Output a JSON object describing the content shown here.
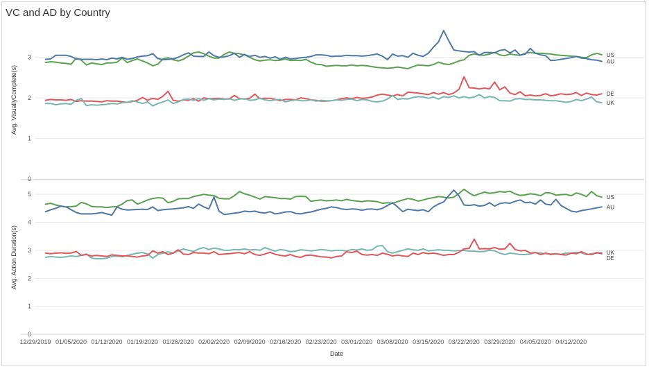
{
  "title": "VC and AD by Country",
  "colors": {
    "US": "#59a14f",
    "AU": "#4e79a7",
    "DE": "#e15759",
    "UK": "#76b7b2",
    "grid": "#e9e9e9",
    "divider": "#cfcfcf"
  },
  "chart_data": [
    {
      "type": "line",
      "ylabel": "Avg. VisuallyComplete(s)",
      "xlabel": "Date",
      "ylim": [
        0,
        3.9
      ],
      "yticks": [
        0,
        1,
        2,
        3
      ],
      "grid": true,
      "x_start": "2019-12-31",
      "x_step_days": 1,
      "xticks": [
        "12/29/2019",
        "01/05/2020",
        "01/12/2020",
        "01/19/2020",
        "01/26/2020",
        "02/02/2020",
        "02/09/2020",
        "02/16/2020",
        "02/23/2020",
        "03/01/2020",
        "03/08/2020",
        "03/15/2020",
        "03/22/2020",
        "03/29/2020",
        "04/05/2020",
        "04/12/2020"
      ],
      "series": [
        {
          "name": "US",
          "label_order": 0,
          "values": [
            2.87,
            2.89,
            2.88,
            2.86,
            2.85,
            2.83,
            2.98,
            2.93,
            2.81,
            2.86,
            2.84,
            2.82,
            2.86,
            2.86,
            2.88,
            2.98,
            2.87,
            2.92,
            2.96,
            2.91,
            2.86,
            2.79,
            2.83,
            2.96,
            2.99,
            2.94,
            2.91,
            2.95,
            3.03,
            3.11,
            3.13,
            3.09,
            3.03,
            2.98,
            2.98,
            3.07,
            3.13,
            3.1,
            3.09,
            3.06,
            3.0,
            2.94,
            2.91,
            2.93,
            2.94,
            2.92,
            2.93,
            2.96,
            2.92,
            2.93,
            2.92,
            2.95,
            2.88,
            2.83,
            2.82,
            2.78,
            2.79,
            2.8,
            2.79,
            2.79,
            2.81,
            2.79,
            2.8,
            2.79,
            2.77,
            2.75,
            2.74,
            2.73,
            2.74,
            2.76,
            2.74,
            2.72,
            2.77,
            2.81,
            2.8,
            2.79,
            2.82,
            2.88,
            2.84,
            2.82,
            2.86,
            2.91,
            2.94,
            3.05,
            3.08,
            3.06,
            3.05,
            3.08,
            3.12,
            3.06,
            3.04,
            3.08,
            3.06,
            3.05,
            3.1,
            3.12,
            3.1,
            3.1,
            3.09,
            3.08,
            3.06,
            3.05,
            3.04,
            3.03,
            3.02,
            3.0,
            2.99,
            3.06,
            3.1,
            3.06
          ]
        },
        {
          "name": "AU",
          "label_order": 1,
          "values": [
            2.95,
            2.96,
            3.05,
            3.05,
            3.05,
            3.02,
            2.96,
            2.95,
            2.95,
            2.95,
            2.94,
            2.96,
            2.94,
            2.98,
            2.96,
            3.0,
            2.95,
            2.97,
            3.01,
            3.03,
            3.04,
            3.09,
            2.97,
            2.94,
            2.95,
            2.96,
            3.0,
            3.06,
            3.11,
            3.03,
            3.02,
            3.02,
            3.13,
            3.04,
            3.0,
            3.01,
            3.04,
            3.1,
            3.0,
            3.07,
            3.02,
            3.05,
            3.0,
            3.02,
            2.98,
            3.01,
            2.95,
            3.0,
            2.96,
            2.97,
            2.99,
            3.0,
            3.02,
            3.06,
            3.06,
            3.05,
            3.02,
            3.03,
            3.03,
            3.05,
            3.04,
            3.04,
            3.03,
            3.04,
            3.06,
            3.08,
            3.03,
            2.94,
            3.08,
            3.03,
            3.04,
            3.0,
            3.1,
            3.05,
            3.02,
            3.1,
            3.25,
            3.38,
            3.66,
            3.41,
            3.18,
            3.16,
            3.14,
            3.13,
            3.14,
            3.05,
            3.12,
            3.12,
            3.11,
            3.17,
            3.19,
            3.11,
            3.18,
            3.05,
            3.08,
            3.22,
            3.1,
            3.06,
            3.04,
            2.92,
            2.93,
            2.95,
            2.97,
            2.99,
            3.02,
            2.98,
            2.97,
            2.94,
            2.93,
            2.9
          ]
        },
        {
          "name": "DE",
          "label_order": 2,
          "values": [
            1.94,
            1.96,
            1.95,
            1.95,
            1.94,
            1.96,
            1.91,
            1.93,
            1.92,
            1.92,
            1.91,
            1.9,
            1.93,
            1.92,
            1.92,
            1.9,
            1.89,
            1.91,
            1.94,
            2.01,
            1.94,
            1.99,
            1.96,
            2.04,
            2.16,
            1.94,
            1.92,
            1.95,
            1.94,
            1.98,
            1.92,
            2.0,
            1.98,
            1.98,
            1.99,
            1.97,
            1.97,
            2.06,
            1.98,
            1.97,
            1.99,
            2.09,
            1.98,
            1.99,
            1.99,
            1.96,
            1.93,
            1.96,
            1.96,
            1.95,
            2.0,
            1.98,
            1.95,
            1.94,
            1.92,
            1.92,
            1.93,
            1.95,
            1.98,
            2.0,
            1.98,
            2.01,
            1.99,
            2.0,
            2.02,
            2.07,
            2.09,
            2.07,
            2.05,
            2.08,
            2.05,
            2.14,
            2.13,
            2.12,
            2.1,
            2.08,
            2.13,
            2.09,
            2.13,
            2.08,
            2.12,
            2.21,
            2.52,
            2.25,
            2.24,
            2.22,
            2.24,
            2.22,
            2.39,
            2.2,
            2.27,
            2.12,
            2.08,
            2.15,
            2.05,
            2.07,
            2.05,
            2.06,
            2.1,
            2.05,
            2.07,
            2.1,
            2.08,
            2.09,
            2.13,
            2.06,
            2.12,
            2.08,
            2.07,
            2.1
          ]
        },
        {
          "name": "UK",
          "label_order": 3,
          "values": [
            1.86,
            1.86,
            1.83,
            1.85,
            1.86,
            1.84,
            1.94,
            1.98,
            1.81,
            1.83,
            1.82,
            1.83,
            1.84,
            1.86,
            1.85,
            1.88,
            1.89,
            1.93,
            1.9,
            1.86,
            1.9,
            1.8,
            1.86,
            1.9,
            1.95,
            1.86,
            1.9,
            1.96,
            1.97,
            1.94,
            1.98,
            1.94,
            1.98,
            1.95,
            1.97,
            1.96,
            1.98,
            1.94,
            1.97,
            1.98,
            1.94,
            1.95,
            1.99,
            1.95,
            1.93,
            1.95,
            1.96,
            1.9,
            1.93,
            1.95,
            1.93,
            1.93,
            1.95,
            1.92,
            1.94,
            1.93,
            1.93,
            1.95,
            1.94,
            1.96,
            1.97,
            1.93,
            1.96,
            1.95,
            1.91,
            1.9,
            1.92,
            1.97,
            2.06,
            1.96,
            1.98,
            1.97,
            2.01,
            2.03,
            2.02,
            1.99,
            2.02,
            1.97,
            2.03,
            2.01,
            2.05,
            2.0,
            2.03,
            2.0,
            2.02,
            2.08,
            2.0,
            2.03,
            2.01,
            1.93,
            1.93,
            1.92,
            1.97,
            1.98,
            1.96,
            1.96,
            1.95,
            1.95,
            1.94,
            1.93,
            1.93,
            1.91,
            1.89,
            1.91,
            1.96,
            1.93,
            1.97,
            2.02,
            1.9,
            1.88
          ]
        }
      ]
    },
    {
      "type": "line",
      "ylabel": "Avg. Action Duration(s)",
      "xlabel": "Date",
      "ylim": [
        0,
        5.5
      ],
      "yticks": [
        0,
        1,
        2,
        3,
        4,
        5
      ],
      "grid": true,
      "x_start": "2019-12-31",
      "x_step_days": 1,
      "series": [
        {
          "name": "US",
          "label_order": 0,
          "values": [
            4.65,
            4.68,
            4.62,
            4.58,
            4.55,
            4.56,
            4.58,
            4.71,
            4.66,
            4.57,
            4.55,
            4.55,
            4.53,
            4.55,
            4.56,
            4.65,
            4.78,
            4.8,
            4.65,
            4.72,
            4.8,
            4.85,
            4.88,
            4.86,
            4.7,
            4.75,
            4.84,
            4.85,
            4.85,
            4.92,
            4.96,
            5.0,
            4.97,
            4.95,
            4.86,
            4.84,
            4.84,
            4.95,
            5.1,
            5.02,
            4.97,
            4.9,
            4.83,
            4.92,
            4.9,
            4.88,
            4.85,
            4.85,
            4.83,
            4.92,
            4.93,
            4.92,
            4.75,
            4.78,
            4.8,
            4.77,
            4.78,
            4.8,
            4.77,
            4.82,
            4.78,
            4.76,
            4.74,
            4.77,
            4.76,
            4.74,
            4.68,
            4.7,
            4.68,
            4.74,
            4.8,
            4.85,
            4.82,
            4.76,
            4.8,
            4.85,
            4.88,
            4.92,
            4.9,
            4.87,
            4.9,
            5.03,
            5.18,
            5.05,
            4.95,
            5.02,
            5.08,
            5.04,
            5.06,
            5.1,
            5.08,
            5.11,
            5.02,
            4.96,
            4.98,
            5.02,
            5.0,
            4.95,
            5.06,
            5.05,
            4.97,
            4.99,
            5.0,
            4.95,
            5.05,
            5.0,
            4.92,
            5.1,
            4.95,
            4.9
          ]
        },
        {
          "name": "AU",
          "label_order": 1,
          "values": [
            4.38,
            4.45,
            4.5,
            4.58,
            4.55,
            4.45,
            4.35,
            4.3,
            4.3,
            4.3,
            4.32,
            4.35,
            4.3,
            4.26,
            4.55,
            4.47,
            4.44,
            4.45,
            4.46,
            4.47,
            4.46,
            4.55,
            4.42,
            4.45,
            4.47,
            4.48,
            4.5,
            4.52,
            4.56,
            4.5,
            4.65,
            4.55,
            4.48,
            4.9,
            4.4,
            4.28,
            4.3,
            4.33,
            4.35,
            4.4,
            4.38,
            4.4,
            4.35,
            4.33,
            4.38,
            4.3,
            4.33,
            4.37,
            4.38,
            4.32,
            4.3,
            4.34,
            4.37,
            4.42,
            4.47,
            4.5,
            4.55,
            4.53,
            4.48,
            4.46,
            4.48,
            4.47,
            4.43,
            4.47,
            4.48,
            4.45,
            4.5,
            4.6,
            4.7,
            4.55,
            4.38,
            4.47,
            4.44,
            4.42,
            4.45,
            4.38,
            4.55,
            4.65,
            4.73,
            4.95,
            5.15,
            4.95,
            4.62,
            4.6,
            4.63,
            4.58,
            4.6,
            4.7,
            4.58,
            4.67,
            4.7,
            4.68,
            4.75,
            4.8,
            4.7,
            4.72,
            4.65,
            4.8,
            4.65,
            4.62,
            4.82,
            4.6,
            4.5,
            4.4,
            4.37,
            4.42,
            4.45,
            4.48,
            4.52,
            4.55
          ]
        },
        {
          "name": "UK",
          "label_order": 2,
          "values": [
            2.75,
            2.78,
            2.76,
            2.75,
            2.77,
            2.8,
            2.78,
            2.82,
            2.87,
            2.72,
            2.7,
            2.7,
            2.72,
            2.78,
            2.8,
            2.77,
            2.82,
            2.86,
            2.9,
            2.92,
            2.87,
            2.72,
            2.85,
            2.9,
            2.95,
            2.9,
            2.98,
            3.05,
            3.0,
            2.96,
            3.05,
            3.1,
            3.03,
            3.08,
            3.05,
            3.0,
            3.0,
            3.03,
            3.02,
            3.05,
            3.01,
            3.03,
            3.0,
            3.1,
            3.03,
            2.97,
            3.03,
            3.0,
            2.95,
            2.97,
            3.02,
            3.0,
            2.98,
            3.0,
            3.03,
            3.01,
            2.98,
            3.0,
            3.0,
            2.98,
            3.03,
            3.01,
            3.05,
            3.0,
            3.02,
            3.15,
            3.17,
            2.95,
            2.9,
            2.95,
            3.0,
            3.05,
            3.02,
            3.0,
            3.05,
            2.98,
            3.0,
            3.02,
            3.0,
            3.0,
            2.98,
            2.99,
            3.0,
            2.97,
            2.97,
            2.95,
            2.96,
            3.0,
            2.98,
            2.9,
            2.85,
            2.9,
            2.88,
            2.85,
            2.85,
            2.87,
            2.92,
            2.9,
            2.88,
            2.87,
            2.88,
            2.86,
            2.9,
            2.9,
            2.93,
            2.91,
            2.85,
            2.88,
            2.9,
            2.92
          ]
        },
        {
          "name": "DE",
          "label_order": 3,
          "values": [
            2.9,
            2.88,
            2.9,
            2.91,
            2.89,
            2.9,
            2.96,
            2.82,
            2.85,
            2.8,
            2.82,
            2.8,
            2.78,
            2.84,
            2.82,
            2.8,
            2.8,
            2.78,
            2.76,
            2.8,
            2.82,
            2.98,
            2.9,
            2.95,
            2.85,
            2.9,
            3.02,
            2.87,
            2.85,
            2.92,
            2.9,
            2.9,
            2.88,
            2.95,
            2.85,
            2.87,
            2.88,
            2.9,
            2.92,
            2.88,
            2.95,
            2.85,
            2.82,
            2.87,
            2.93,
            2.86,
            2.82,
            2.8,
            2.85,
            2.78,
            2.75,
            2.82,
            2.83,
            2.8,
            2.77,
            2.76,
            2.73,
            2.78,
            2.8,
            2.95,
            2.92,
            2.97,
            2.85,
            2.83,
            2.85,
            2.82,
            2.9,
            2.86,
            2.8,
            2.83,
            2.8,
            2.78,
            2.9,
            2.85,
            2.92,
            2.88,
            2.9,
            2.87,
            2.82,
            2.85,
            2.85,
            2.93,
            3.05,
            3.07,
            3.4,
            3.05,
            3.06,
            3.05,
            3.1,
            3.04,
            3.05,
            3.25,
            3.03,
            2.98,
            3.0,
            2.9,
            2.92,
            2.85,
            2.9,
            2.85,
            2.88,
            2.85,
            2.83,
            2.9,
            2.88,
            2.95,
            2.87,
            2.85,
            2.92,
            2.88
          ]
        }
      ]
    }
  ]
}
